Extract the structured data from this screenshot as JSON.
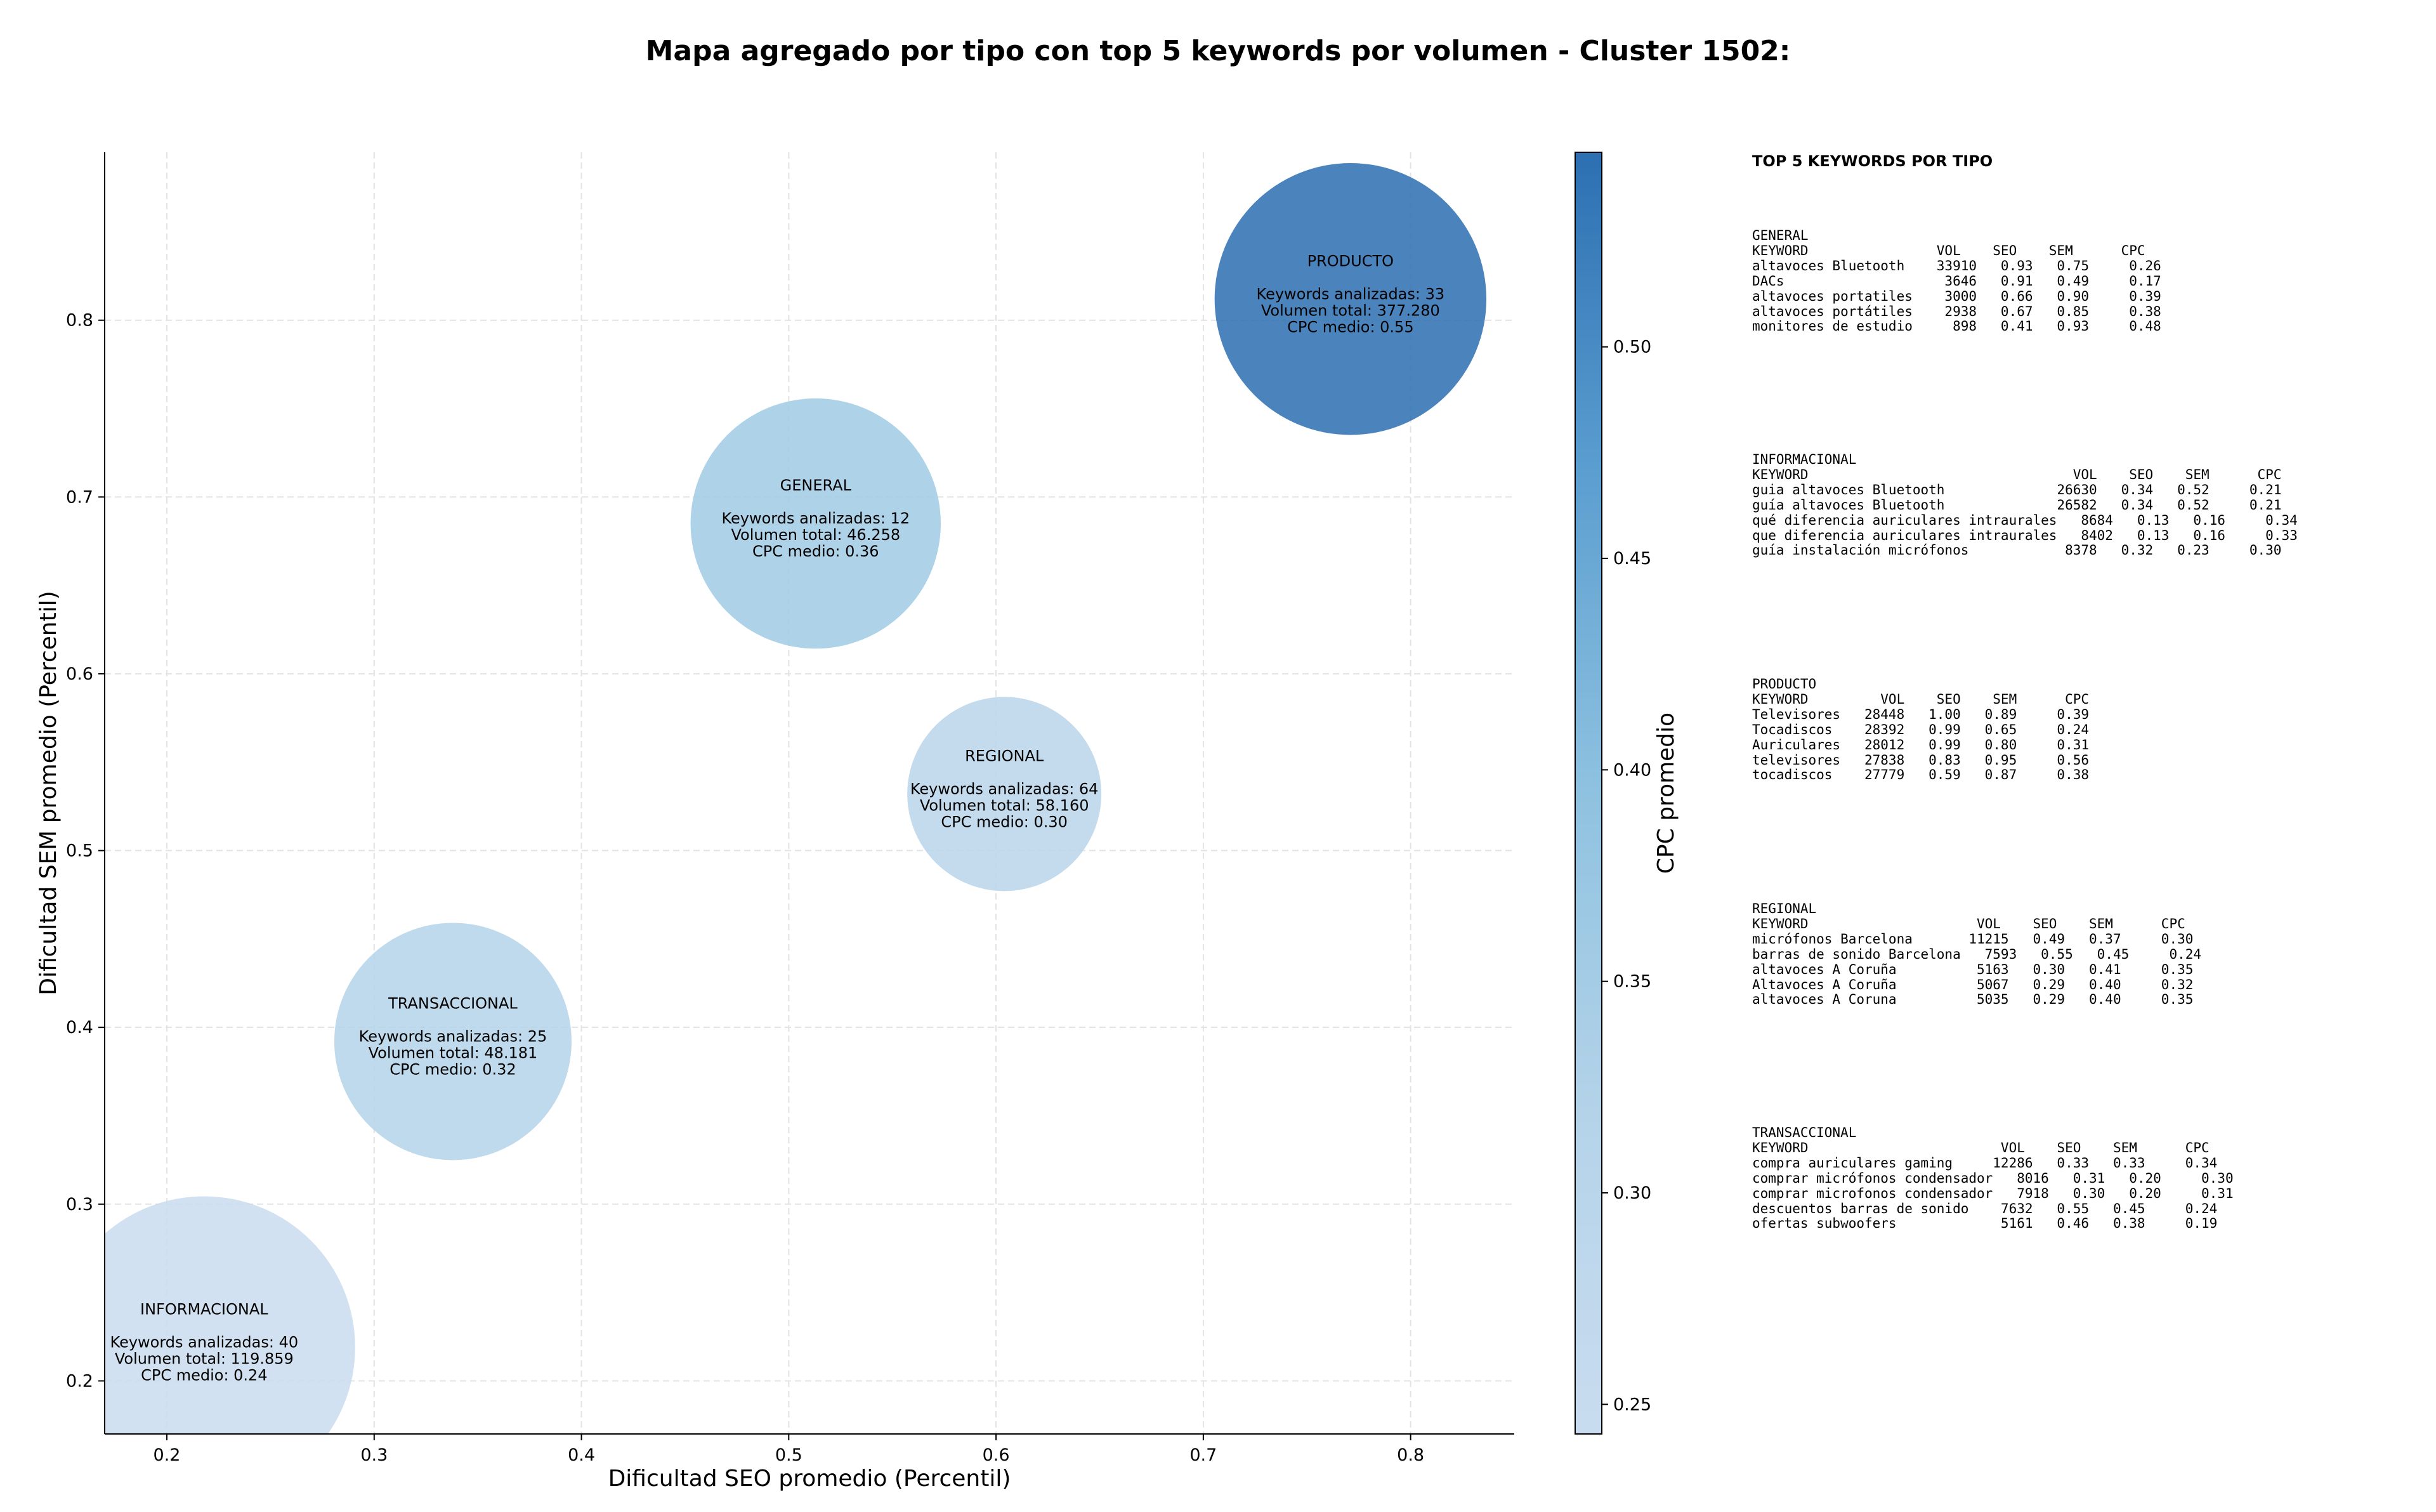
{
  "chart_data": {
    "type": "bubble",
    "title": "Mapa agregado por tipo con top 5 keywords por volumen - Cluster 1502:",
    "xlabel": "Dificultad SEO promedio (Percentil)",
    "ylabel": "Dificultad SEM promedio (Percentil)",
    "xlim": [
      0.17,
      0.85
    ],
    "ylim": [
      0.17,
      0.895
    ],
    "xticks": [
      "0.2",
      "0.3",
      "0.4",
      "0.5",
      "0.6",
      "0.7",
      "0.8"
    ],
    "yticks": [
      "0.2",
      "0.3",
      "0.4",
      "0.5",
      "0.6",
      "0.7",
      "0.8"
    ],
    "grid": true,
    "colorbar": {
      "label": "CPC promedio",
      "range": [
        0.243,
        0.546
      ],
      "ticks": [
        "0.25",
        "0.30",
        "0.35",
        "0.40",
        "0.45",
        "0.50"
      ],
      "colormap": [
        "#c6dbef",
        "#9ecae1",
        "#6baed6",
        "#4292c6",
        "#2171b5"
      ]
    },
    "bubbles": [
      {
        "type": "INFORMACIONAL",
        "x": 0.218,
        "y": 0.219,
        "count_text": "Keywords analizadas: 40",
        "volume_text": "Volumen total: 119.859",
        "cpc_text": "CPC medio: 0.24",
        "cpc": 0.24,
        "size": 0.7
      },
      {
        "type": "TRANSACCIONAL",
        "x": 0.338,
        "y": 0.392,
        "count_text": "Keywords analizadas: 25",
        "volume_text": "Volumen total: 48.181",
        "cpc_text": "CPC medio: 0.32",
        "cpc": 0.32,
        "size": 0.55
      },
      {
        "type": "GENERAL",
        "x": 0.513,
        "y": 0.685,
        "count_text": "Keywords analizadas: 12",
        "volume_text": "Volumen total: 46.258",
        "cpc_text": "CPC medio: 0.36",
        "cpc": 0.36,
        "size": 0.58
      },
      {
        "type": "REGIONAL",
        "x": 0.604,
        "y": 0.532,
        "count_text": "Keywords analizadas: 64",
        "volume_text": "Volumen total: 58.160",
        "cpc_text": "CPC medio: 0.30",
        "cpc": 0.3,
        "size": 0.45
      },
      {
        "type": "PRODUCTO",
        "x": 0.771,
        "y": 0.812,
        "count_text": "Keywords analizadas: 33",
        "volume_text": "Volumen total: 377.280",
        "cpc_text": "CPC medio: 0.55",
        "cpc": 0.55,
        "size": 0.63
      }
    ]
  },
  "panel": {
    "heading": "TOP 5 KEYWORDS POR TIPO",
    "blocks": [
      {
        "text": "GENERAL\nKEYWORD                VOL    SEO    SEM      CPC\naltavoces Bluetooth    33910   0.93   0.75     0.26\nDACs                    3646   0.91   0.49     0.17\naltavoces portatiles    3000   0.66   0.90     0.39\naltavoces portátiles    2938   0.67   0.85     0.38\nmonitores de estudio     898   0.41   0.93     0.48"
      },
      {
        "text": "INFORMACIONAL\nKEYWORD                                 VOL    SEO    SEM      CPC\nguia altavoces Bluetooth              26630   0.34   0.52     0.21\nguía altavoces Bluetooth              26582   0.34   0.52     0.21\nqué diferencia auriculares intraurales   8684   0.13   0.16     0.34\nque diferencia auriculares intraurales   8402   0.13   0.16     0.33\nguía instalación micrófonos            8378   0.32   0.23     0.30"
      },
      {
        "text": "PRODUCTO\nKEYWORD         VOL    SEO    SEM      CPC\nTelevisores   28448   1.00   0.89     0.39\nTocadiscos    28392   0.99   0.65     0.24\nAuriculares   28012   0.99   0.80     0.31\ntelevisores   27838   0.83   0.95     0.56\ntocadiscos    27779   0.59   0.87     0.38"
      },
      {
        "text": "REGIONAL\nKEYWORD                     VOL    SEO    SEM      CPC\nmicrófonos Barcelona       11215   0.49   0.37     0.30\nbarras de sonido Barcelona   7593   0.55   0.45     0.24\naltavoces A Coruña          5163   0.30   0.41     0.35\nAltavoces A Coruña          5067   0.29   0.40     0.32\naltavoces A Coruna          5035   0.29   0.40     0.35"
      },
      {
        "text": "TRANSACCIONAL\nKEYWORD                        VOL    SEO    SEM      CPC\ncompra auriculares gaming     12286   0.33   0.33     0.34\ncomprar micrófonos condensador   8016   0.31   0.20     0.30\ncomprar microfonos condensador   7918   0.30   0.20     0.31\ndescuentos barras de sonido    7632   0.55   0.45     0.24\nofertas subwoofers             5161   0.46   0.38     0.19"
      }
    ]
  }
}
